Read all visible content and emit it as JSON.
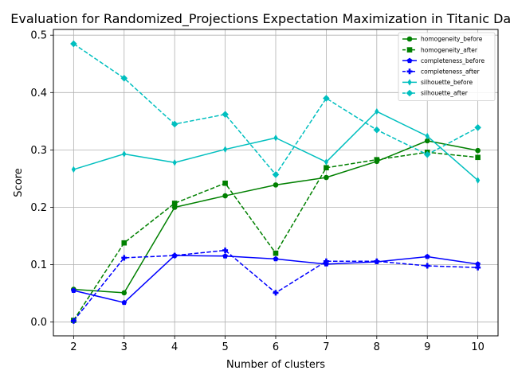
{
  "chart_data": {
    "type": "line",
    "title": "Evaluation for Randomized_Projections Expectation Maximization in Titanic Data (n",
    "xlabel": "Number of clusters",
    "ylabel": "Score",
    "x": [
      2,
      3,
      4,
      5,
      6,
      7,
      8,
      9,
      10
    ],
    "xticks": [
      "2",
      "3",
      "4",
      "5",
      "6",
      "7",
      "8",
      "9",
      "10"
    ],
    "xlim": [
      1.6,
      10.4
    ],
    "yticks": [
      "0.0",
      "0.1",
      "0.2",
      "0.3",
      "0.4",
      "0.5"
    ],
    "ylim": [
      -0.024,
      0.51
    ],
    "grid": true,
    "legend_position": "top-right",
    "series": [
      {
        "name": "homogeneity_before",
        "color": "#008000",
        "dashed": false,
        "marker": "circle",
        "values": [
          0.057,
          0.051,
          0.2,
          0.22,
          0.239,
          0.252,
          0.28,
          0.316,
          0.299
        ]
      },
      {
        "name": "homogeneity_after",
        "color": "#008000",
        "dashed": true,
        "marker": "square",
        "values": [
          0.003,
          0.138,
          0.207,
          0.242,
          0.12,
          0.269,
          0.283,
          0.296,
          0.287
        ]
      },
      {
        "name": "completeness_before",
        "color": "#0000ff",
        "dashed": false,
        "marker": "pentagon",
        "values": [
          0.055,
          0.034,
          0.116,
          0.115,
          0.11,
          0.101,
          0.105,
          0.114,
          0.101
        ]
      },
      {
        "name": "completeness_after",
        "color": "#0000ff",
        "dashed": true,
        "marker": "plus",
        "values": [
          0.002,
          0.112,
          0.116,
          0.125,
          0.051,
          0.106,
          0.106,
          0.098,
          0.095
        ]
      },
      {
        "name": "silhouette_before",
        "color": "#00bfbf",
        "dashed": false,
        "marker": "thin_diamond",
        "values": [
          0.266,
          0.293,
          0.278,
          0.301,
          0.321,
          0.279,
          0.367,
          0.324,
          0.247
        ]
      },
      {
        "name": "silhouette_after",
        "color": "#00bfbf",
        "dashed": true,
        "marker": "diamond",
        "values": [
          0.485,
          0.425,
          0.345,
          0.362,
          0.257,
          0.39,
          0.335,
          0.292,
          0.339
        ]
      }
    ]
  }
}
